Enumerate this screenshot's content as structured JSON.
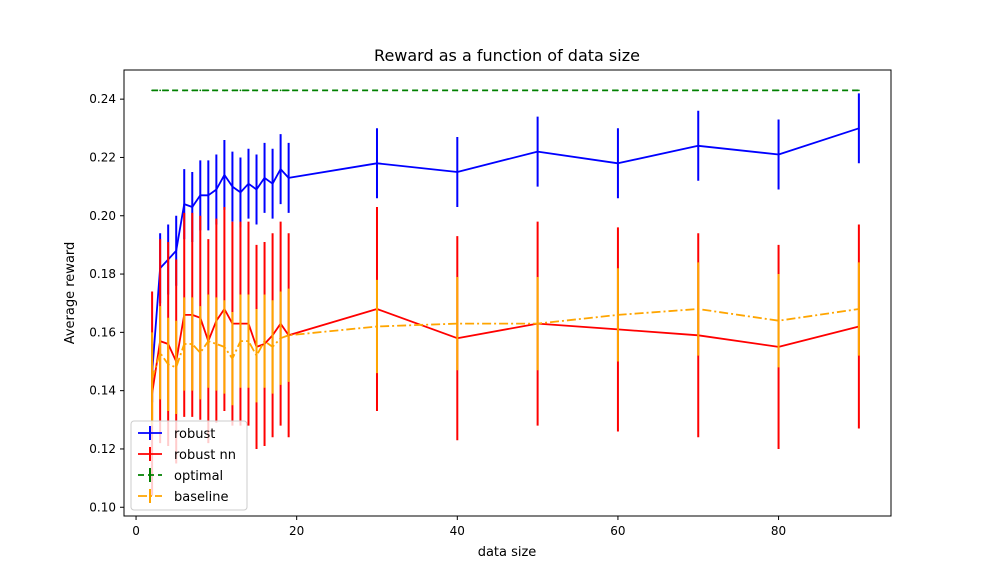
{
  "chart_data": {
    "type": "line",
    "title": "Reward as a function of data size",
    "xlabel": "data size",
    "ylabel": "Average reward",
    "xlim": [
      -1.5,
      94
    ],
    "ylim": [
      0.097,
      0.25
    ],
    "xticks": [
      0,
      20,
      40,
      60,
      80
    ],
    "yticks": [
      0.1,
      0.12,
      0.14,
      0.16,
      0.18,
      0.2,
      0.22,
      0.24
    ],
    "x": [
      2,
      3,
      4,
      5,
      6,
      7,
      8,
      9,
      10,
      11,
      12,
      13,
      14,
      15,
      16,
      17,
      18,
      19,
      30,
      40,
      50,
      60,
      70,
      80,
      90
    ],
    "grid": false,
    "legend_position": "lower-left",
    "series": [
      {
        "name": "robust",
        "color": "#0000ff",
        "linestyle": "solid",
        "values": [
          0.146,
          0.182,
          0.185,
          0.188,
          0.204,
          0.203,
          0.207,
          0.207,
          0.209,
          0.214,
          0.21,
          0.208,
          0.211,
          0.209,
          0.213,
          0.211,
          0.216,
          0.213,
          0.218,
          0.215,
          0.222,
          0.218,
          0.224,
          0.221,
          0.23
        ],
        "errors": [
          0.01,
          0.012,
          0.012,
          0.012,
          0.012,
          0.012,
          0.012,
          0.012,
          0.012,
          0.012,
          0.012,
          0.012,
          0.012,
          0.012,
          0.012,
          0.012,
          0.012,
          0.012,
          0.012,
          0.012,
          0.012,
          0.012,
          0.012,
          0.012,
          0.012
        ]
      },
      {
        "name": "robust nn",
        "color": "#ff0000",
        "linestyle": "solid",
        "values": [
          0.139,
          0.157,
          0.156,
          0.15,
          0.166,
          0.166,
          0.165,
          0.157,
          0.164,
          0.168,
          0.163,
          0.163,
          0.163,
          0.155,
          0.156,
          0.159,
          0.163,
          0.159,
          0.168,
          0.158,
          0.163,
          0.161,
          0.159,
          0.155,
          0.162
        ],
        "errors": [
          0.035,
          0.035,
          0.035,
          0.035,
          0.035,
          0.035,
          0.035,
          0.035,
          0.035,
          0.035,
          0.035,
          0.035,
          0.035,
          0.035,
          0.035,
          0.035,
          0.035,
          0.035,
          0.035,
          0.035,
          0.035,
          0.035,
          0.035,
          0.035,
          0.035
        ]
      },
      {
        "name": "optimal",
        "color": "#008000",
        "linestyle": "dashed",
        "values": [
          0.243,
          0.243,
          0.243,
          0.243,
          0.243,
          0.243,
          0.243,
          0.243,
          0.243,
          0.243,
          0.243,
          0.243,
          0.243,
          0.243,
          0.243,
          0.243,
          0.243,
          0.243,
          0.243,
          0.243,
          0.243,
          0.243,
          0.243,
          0.243,
          0.243
        ],
        "errors": [
          0,
          0,
          0,
          0,
          0,
          0,
          0,
          0,
          0,
          0,
          0,
          0,
          0,
          0,
          0,
          0,
          0,
          0,
          0,
          0,
          0,
          0,
          0,
          0,
          0
        ]
      },
      {
        "name": "baseline",
        "color": "#ffa500",
        "linestyle": "dashdot",
        "values": [
          0.144,
          0.153,
          0.149,
          0.148,
          0.156,
          0.156,
          0.153,
          0.157,
          0.156,
          0.155,
          0.151,
          0.157,
          0.157,
          0.152,
          0.157,
          0.155,
          0.158,
          0.159,
          0.162,
          0.163,
          0.163,
          0.166,
          0.168,
          0.164,
          0.168
        ],
        "errors": [
          0.016,
          0.016,
          0.016,
          0.016,
          0.016,
          0.016,
          0.016,
          0.016,
          0.016,
          0.016,
          0.016,
          0.016,
          0.016,
          0.016,
          0.016,
          0.016,
          0.016,
          0.016,
          0.016,
          0.016,
          0.016,
          0.016,
          0.016,
          0.016,
          0.016
        ]
      }
    ]
  }
}
